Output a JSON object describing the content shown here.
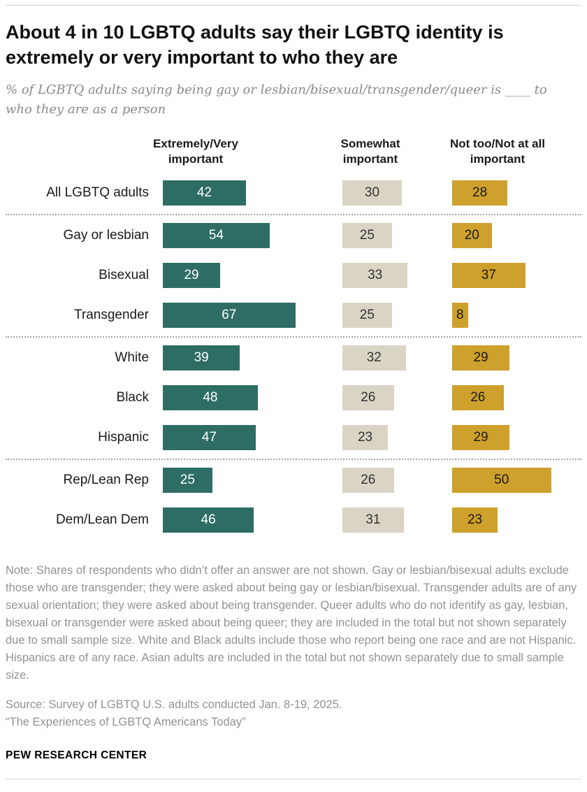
{
  "header": {
    "title": "About 4 in 10 LGBTQ adults say their LGBTQ identity is extremely or very important to who they are",
    "subtitle": "% of LGBTQ adults saying being gay or lesbian/bisexual/transgender/queer is ____ to who they are as a person"
  },
  "chart_data": {
    "type": "bar",
    "orientation": "horizontal",
    "columns": [
      "Extremely/Very important",
      "Somewhat important",
      "Not too/Not at all important"
    ],
    "colors": [
      "#2E6D64",
      "#D9D4C4",
      "#CEA02C"
    ],
    "value_range": [
      0,
      100
    ],
    "unit": "%",
    "groups": [
      {
        "rows": [
          {
            "label": "All LGBTQ adults",
            "values": [
              42,
              30,
              28
            ]
          }
        ]
      },
      {
        "rows": [
          {
            "label": "Gay or lesbian",
            "values": [
              54,
              25,
              20
            ]
          },
          {
            "label": "Bisexual",
            "values": [
              29,
              33,
              37
            ]
          },
          {
            "label": "Transgender",
            "values": [
              67,
              25,
              8
            ]
          }
        ]
      },
      {
        "rows": [
          {
            "label": "White",
            "values": [
              39,
              32,
              29
            ]
          },
          {
            "label": "Black",
            "values": [
              48,
              26,
              26
            ]
          },
          {
            "label": "Hispanic",
            "values": [
              47,
              23,
              29
            ]
          }
        ]
      },
      {
        "rows": [
          {
            "label": "Rep/Lean Rep",
            "values": [
              25,
              26,
              50
            ]
          },
          {
            "label": "Dem/Lean Dem",
            "values": [
              46,
              31,
              23
            ]
          }
        ]
      }
    ]
  },
  "footer": {
    "note": "Note: Shares of respondents who didn’t offer an answer are not shown. Gay or lesbian/bisexual adults exclude those who are transgender; they were asked about being gay or lesbian/bisexual. Transgender adults are of any sexual orientation; they were asked about being transgender. Queer adults who do not identify as gay, lesbian, bisexual or transgender were asked about being queer; they are included in the total but not shown separately due to small sample size. White and Black adults include those who report being one race and are not Hispanic. Hispanics are of any race. Asian adults are included in the total but not shown separately due to small sample size.",
    "source": "Source: Survey of LGBTQ U.S. adults conducted Jan. 8-19, 2025.",
    "report": "“The Experiences of LGBTQ Americans Today”",
    "brand": "PEW RESEARCH CENTER"
  }
}
